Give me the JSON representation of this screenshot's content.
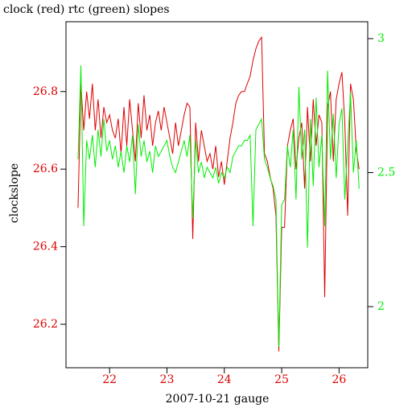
{
  "chart_data": {
    "type": "line",
    "title": "clock (red) rtc (green) slopes",
    "x_label": "2007-10-21 gauge",
    "y_label": "clockslope",
    "xlim": [
      21.24,
      26.5
    ],
    "xticks": [
      22,
      23,
      24,
      25,
      26
    ],
    "ylim": [
      26.088,
      26.98
    ],
    "yticks": [
      26.2,
      26.4,
      26.6,
      26.8
    ],
    "y2lim": [
      1.772,
      3.063
    ],
    "y2ticks": [
      2,
      2.5,
      3
    ],
    "x": [
      21.45,
      21.5,
      21.55,
      21.6,
      21.65,
      21.7,
      21.75,
      21.8,
      21.85,
      21.9,
      21.95,
      22,
      22.05,
      22.1,
      22.15,
      22.2,
      22.25,
      22.3,
      22.35,
      22.4,
      22.45,
      22.5,
      22.55,
      22.6,
      22.65,
      22.7,
      22.75,
      22.8,
      22.85,
      22.9,
      22.95,
      23,
      23.05,
      23.1,
      23.15,
      23.2,
      23.25,
      23.3,
      23.35,
      23.4,
      23.45,
      23.5,
      23.55,
      23.6,
      23.65,
      23.7,
      23.75,
      23.8,
      23.85,
      23.9,
      23.95,
      24,
      24.05,
      24.1,
      24.15,
      24.2,
      24.25,
      24.3,
      24.35,
      24.4,
      24.45,
      24.5,
      24.55,
      24.6,
      24.65,
      24.7,
      24.75,
      24.8,
      24.85,
      24.9,
      24.95,
      25,
      25.05,
      25.1,
      25.15,
      25.2,
      25.25,
      25.3,
      25.35,
      25.4,
      25.45,
      25.5,
      25.55,
      25.6,
      25.65,
      25.7,
      25.75,
      25.8,
      25.85,
      25.9,
      25.95,
      26,
      26.05,
      26.1,
      26.15,
      26.2,
      26.25,
      26.3,
      26.35
    ],
    "series": [
      {
        "color": "#dd0000",
        "values": [
          26.5,
          26.82,
          26.7,
          26.8,
          26.73,
          26.82,
          26.7,
          26.78,
          26.68,
          26.76,
          26.72,
          26.74,
          26.7,
          26.68,
          26.73,
          26.64,
          26.76,
          26.66,
          26.78,
          26.7,
          26.62,
          26.77,
          26.68,
          26.79,
          26.7,
          26.74,
          26.66,
          26.72,
          26.75,
          26.7,
          26.76,
          26.72,
          26.68,
          26.64,
          26.72,
          26.66,
          26.7,
          26.74,
          26.77,
          26.76,
          26.42,
          26.72,
          26.62,
          26.7,
          26.66,
          26.62,
          26.64,
          26.6,
          26.66,
          26.58,
          26.62,
          26.56,
          26.62,
          26.68,
          26.72,
          26.77,
          26.79,
          26.8,
          26.8,
          26.82,
          26.84,
          26.88,
          26.91,
          26.93,
          26.94,
          26.64,
          26.62,
          26.58,
          26.55,
          26.48,
          26.13,
          26.45,
          26.45,
          26.66,
          26.7,
          26.73,
          26.6,
          26.68,
          26.72,
          26.55,
          26.76,
          26.62,
          26.78,
          26.66,
          26.74,
          26.72,
          26.27,
          26.76,
          26.8,
          26.62,
          26.78,
          26.82,
          26.85,
          26.72,
          26.48,
          26.82,
          26.78,
          26.65,
          26.6
        ]
      },
      {
        "color": "#00ee00",
        "axis": "y2",
        "values": [
          2.55,
          2.9,
          2.3,
          2.62,
          2.55,
          2.64,
          2.52,
          2.66,
          2.56,
          2.7,
          2.58,
          2.62,
          2.55,
          2.6,
          2.52,
          2.58,
          2.5,
          2.6,
          2.54,
          2.64,
          2.42,
          2.68,
          2.56,
          2.62,
          2.54,
          2.58,
          2.5,
          2.6,
          2.56,
          2.58,
          2.6,
          2.62,
          2.56,
          2.52,
          2.5,
          2.54,
          2.58,
          2.62,
          2.56,
          2.64,
          2.33,
          2.62,
          2.5,
          2.54,
          2.48,
          2.52,
          2.5,
          2.48,
          2.52,
          2.46,
          2.5,
          2.48,
          2.52,
          2.5,
          2.56,
          2.58,
          2.6,
          2.6,
          2.62,
          2.62,
          2.64,
          2.3,
          2.66,
          2.68,
          2.7,
          2.55,
          2.52,
          2.48,
          2.45,
          2.4,
          1.85,
          2.38,
          2.4,
          2.6,
          2.52,
          2.66,
          2.4,
          2.82,
          2.55,
          2.66,
          2.22,
          2.7,
          2.45,
          2.78,
          2.52,
          2.64,
          2.3,
          2.88,
          2.55,
          2.72,
          2.48,
          2.68,
          2.74,
          2.4,
          2.6,
          2.8,
          2.5,
          2.62,
          2.44
        ]
      }
    ]
  }
}
